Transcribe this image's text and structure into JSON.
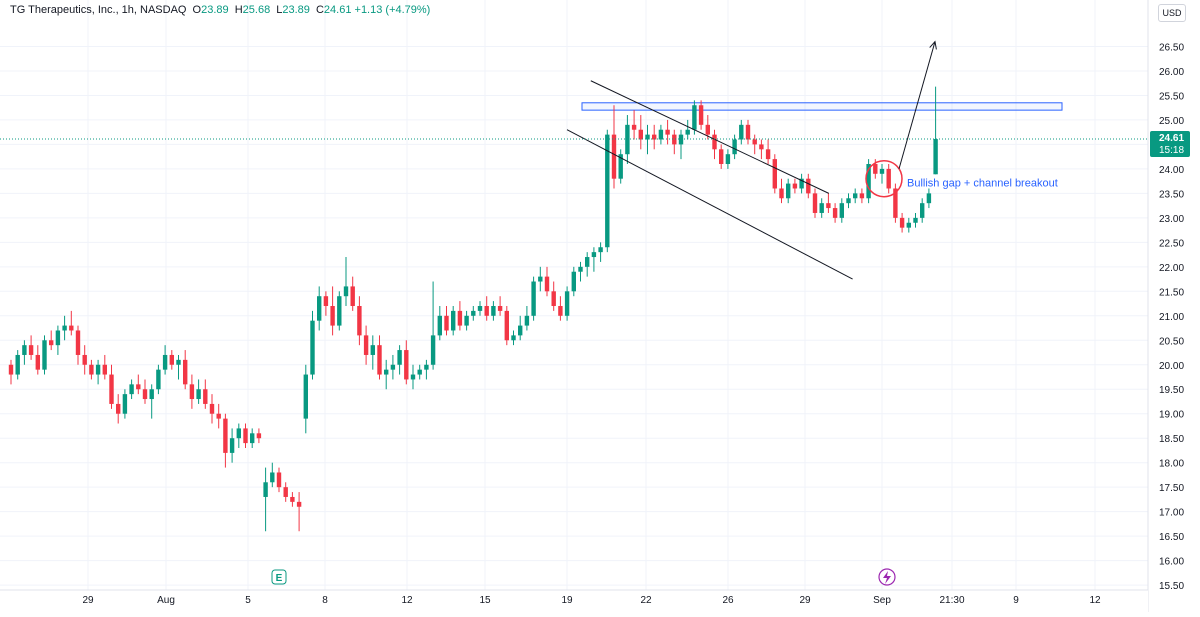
{
  "header": {
    "symbol": "TG Therapeutics, Inc., 1h, NASDAQ",
    "open_label": "O",
    "open": "23.89",
    "high_label": "H",
    "high": "25.68",
    "low_label": "L",
    "low": "23.89",
    "close_label": "C",
    "close": "24.61",
    "change": "+1.13 (+4.79%)"
  },
  "currency": "USD",
  "last_price": {
    "value": "24.61",
    "countdown": "15:18",
    "color": "#089981"
  },
  "annotation": {
    "text": "Bullish gap + channel breakout",
    "color": "#2962ff"
  },
  "markers": {
    "earnings": "E"
  },
  "colors": {
    "up": "#089981",
    "down": "#f23645",
    "line": "#131722",
    "zone": "#2962ff",
    "circle": "#f23645"
  },
  "chart_data": {
    "type": "candlestick",
    "ylim": [
      15.4,
      27.0
    ],
    "y_ticks": [
      "15.50",
      "16.00",
      "16.50",
      "17.00",
      "17.50",
      "18.00",
      "18.50",
      "19.00",
      "19.50",
      "20.00",
      "20.50",
      "21.00",
      "21.50",
      "22.00",
      "22.50",
      "23.00",
      "23.50",
      "24.00",
      "24.50",
      "25.00",
      "25.50",
      "26.00",
      "26.50"
    ],
    "x_labels": [
      "29",
      "Aug",
      "5",
      "8",
      "12",
      "15",
      "19",
      "22",
      "26",
      "29",
      "Sep",
      "21:30",
      "9",
      "12"
    ],
    "candles": [
      [
        20.0,
        20.1,
        19.6,
        19.8
      ],
      [
        19.8,
        20.3,
        19.7,
        20.2
      ],
      [
        20.2,
        20.5,
        20.0,
        20.4
      ],
      [
        20.4,
        20.6,
        20.1,
        20.2
      ],
      [
        20.2,
        20.4,
        19.8,
        19.9
      ],
      [
        19.9,
        20.6,
        19.8,
        20.5
      ],
      [
        20.5,
        20.7,
        20.3,
        20.4
      ],
      [
        20.4,
        20.8,
        20.2,
        20.7
      ],
      [
        20.7,
        21.0,
        20.5,
        20.8
      ],
      [
        20.8,
        21.1,
        20.6,
        20.7
      ],
      [
        20.7,
        20.8,
        20.0,
        20.2
      ],
      [
        20.2,
        20.4,
        19.8,
        20.0
      ],
      [
        20.0,
        20.1,
        19.7,
        19.8
      ],
      [
        19.8,
        20.1,
        19.6,
        20.0
      ],
      [
        20.0,
        20.2,
        19.7,
        19.8
      ],
      [
        19.8,
        20.0,
        19.1,
        19.2
      ],
      [
        19.2,
        19.4,
        18.8,
        19.0
      ],
      [
        19.0,
        19.5,
        18.9,
        19.4
      ],
      [
        19.4,
        19.7,
        19.3,
        19.6
      ],
      [
        19.6,
        19.8,
        19.4,
        19.5
      ],
      [
        19.5,
        19.7,
        19.2,
        19.3
      ],
      [
        19.3,
        19.6,
        18.9,
        19.5
      ],
      [
        19.5,
        20.0,
        19.4,
        19.9
      ],
      [
        19.9,
        20.4,
        19.8,
        20.2
      ],
      [
        20.2,
        20.3,
        19.9,
        20.0
      ],
      [
        20.0,
        20.2,
        19.7,
        20.1
      ],
      [
        20.1,
        20.3,
        19.5,
        19.6
      ],
      [
        19.6,
        19.8,
        19.1,
        19.3
      ],
      [
        19.3,
        19.7,
        19.2,
        19.5
      ],
      [
        19.5,
        19.7,
        19.1,
        19.2
      ],
      [
        19.2,
        19.4,
        18.8,
        19.0
      ],
      [
        19.0,
        19.2,
        18.7,
        18.9
      ],
      [
        18.9,
        19.0,
        17.9,
        18.2
      ],
      [
        18.2,
        18.7,
        18.0,
        18.5
      ],
      [
        18.5,
        18.8,
        18.3,
        18.7
      ],
      [
        18.7,
        18.8,
        18.3,
        18.4
      ],
      [
        18.4,
        18.7,
        18.3,
        18.6
      ],
      [
        18.6,
        18.7,
        18.4,
        18.5
      ],
      [
        17.3,
        17.9,
        16.6,
        17.6
      ],
      [
        17.6,
        18.0,
        17.5,
        17.8
      ],
      [
        17.8,
        17.9,
        17.4,
        17.5
      ],
      [
        17.5,
        17.6,
        17.2,
        17.3
      ],
      [
        17.3,
        17.4,
        17.1,
        17.2
      ],
      [
        17.2,
        17.4,
        16.6,
        17.1
      ],
      [
        18.9,
        20.0,
        18.6,
        19.8
      ],
      [
        19.8,
        21.1,
        19.7,
        20.9
      ],
      [
        20.9,
        21.6,
        20.7,
        21.4
      ],
      [
        21.4,
        21.5,
        21.0,
        21.2
      ],
      [
        21.2,
        21.6,
        20.6,
        20.8
      ],
      [
        20.8,
        21.5,
        20.7,
        21.4
      ],
      [
        21.4,
        22.2,
        21.2,
        21.6
      ],
      [
        21.6,
        21.8,
        21.1,
        21.2
      ],
      [
        21.2,
        21.4,
        20.4,
        20.6
      ],
      [
        20.6,
        20.8,
        20.0,
        20.2
      ],
      [
        20.2,
        20.6,
        19.9,
        20.4
      ],
      [
        20.4,
        20.6,
        19.7,
        19.8
      ],
      [
        19.8,
        20.1,
        19.5,
        19.9
      ],
      [
        19.9,
        20.2,
        19.7,
        20.0
      ],
      [
        20.0,
        20.4,
        19.8,
        20.3
      ],
      [
        20.3,
        20.5,
        19.6,
        19.7
      ],
      [
        19.7,
        20.0,
        19.5,
        19.8
      ],
      [
        19.8,
        20.0,
        19.7,
        19.9
      ],
      [
        19.9,
        20.1,
        19.7,
        20.0
      ],
      [
        20.0,
        21.7,
        19.9,
        20.6
      ],
      [
        20.6,
        21.2,
        20.5,
        21.0
      ],
      [
        21.0,
        21.2,
        20.6,
        20.7
      ],
      [
        20.7,
        21.2,
        20.6,
        21.1
      ],
      [
        21.1,
        21.3,
        20.7,
        20.8
      ],
      [
        20.8,
        21.1,
        20.7,
        21.0
      ],
      [
        21.0,
        21.2,
        20.9,
        21.1
      ],
      [
        21.1,
        21.3,
        21.0,
        21.2
      ],
      [
        21.2,
        21.4,
        20.9,
        21.0
      ],
      [
        21.0,
        21.3,
        20.9,
        21.2
      ],
      [
        21.2,
        21.4,
        21.0,
        21.1
      ],
      [
        21.1,
        21.2,
        20.4,
        20.5
      ],
      [
        20.5,
        20.7,
        20.4,
        20.6
      ],
      [
        20.6,
        21.0,
        20.5,
        20.8
      ],
      [
        20.8,
        21.2,
        20.7,
        21.0
      ],
      [
        21.0,
        21.8,
        20.9,
        21.7
      ],
      [
        21.7,
        22.0,
        21.5,
        21.8
      ],
      [
        21.8,
        22.0,
        21.4,
        21.5
      ],
      [
        21.5,
        21.7,
        21.1,
        21.2
      ],
      [
        21.2,
        21.4,
        20.9,
        21.0
      ],
      [
        21.0,
        21.6,
        20.9,
        21.5
      ],
      [
        21.5,
        22.0,
        21.4,
        21.9
      ],
      [
        21.9,
        22.1,
        21.7,
        22.0
      ],
      [
        22.0,
        22.3,
        21.8,
        22.2
      ],
      [
        22.2,
        22.4,
        21.9,
        22.3
      ],
      [
        22.3,
        22.5,
        22.1,
        22.4
      ],
      [
        22.4,
        24.8,
        22.3,
        24.7
      ],
      [
        24.7,
        25.3,
        23.6,
        23.8
      ],
      [
        23.8,
        24.4,
        23.7,
        24.3
      ],
      [
        24.3,
        25.1,
        24.1,
        24.9
      ],
      [
        24.9,
        25.2,
        24.6,
        24.8
      ],
      [
        24.8,
        25.1,
        24.4,
        24.6
      ],
      [
        24.6,
        24.9,
        24.3,
        24.7
      ],
      [
        24.7,
        24.9,
        24.4,
        24.6
      ],
      [
        24.6,
        24.9,
        24.5,
        24.8
      ],
      [
        24.8,
        25.0,
        24.5,
        24.7
      ],
      [
        24.7,
        24.8,
        24.3,
        24.5
      ],
      [
        24.5,
        24.8,
        24.2,
        24.7
      ],
      [
        24.7,
        25.0,
        24.6,
        24.8
      ],
      [
        24.8,
        25.4,
        24.7,
        25.3
      ],
      [
        25.3,
        25.4,
        24.8,
        24.9
      ],
      [
        24.9,
        25.1,
        24.6,
        24.7
      ],
      [
        24.7,
        24.8,
        24.2,
        24.4
      ],
      [
        24.4,
        24.5,
        24.0,
        24.1
      ],
      [
        24.1,
        24.4,
        24.0,
        24.3
      ],
      [
        24.3,
        24.7,
        24.2,
        24.6
      ],
      [
        24.6,
        25.0,
        24.5,
        24.9
      ],
      [
        24.9,
        25.0,
        24.5,
        24.6
      ],
      [
        24.6,
        24.7,
        24.3,
        24.5
      ],
      [
        24.5,
        24.6,
        24.2,
        24.4
      ],
      [
        24.4,
        24.6,
        24.1,
        24.2
      ],
      [
        24.2,
        24.3,
        23.5,
        23.6
      ],
      [
        23.6,
        23.8,
        23.3,
        23.4
      ],
      [
        23.4,
        23.8,
        23.3,
        23.7
      ],
      [
        23.7,
        23.8,
        23.5,
        23.6
      ],
      [
        23.6,
        23.9,
        23.5,
        23.8
      ],
      [
        23.8,
        23.9,
        23.4,
        23.5
      ],
      [
        23.5,
        23.6,
        23.0,
        23.1
      ],
      [
        23.1,
        23.4,
        23.0,
        23.3
      ],
      [
        23.3,
        23.5,
        23.1,
        23.2
      ],
      [
        23.2,
        23.3,
        22.9,
        23.0
      ],
      [
        23.0,
        23.4,
        22.9,
        23.3
      ],
      [
        23.3,
        23.5,
        23.2,
        23.4
      ],
      [
        23.4,
        23.6,
        23.3,
        23.5
      ],
      [
        23.5,
        23.6,
        23.3,
        23.4
      ],
      [
        23.4,
        24.2,
        23.3,
        24.1
      ],
      [
        24.1,
        24.2,
        23.8,
        23.9
      ],
      [
        23.9,
        24.1,
        23.7,
        24.0
      ],
      [
        24.0,
        24.1,
        23.5,
        23.6
      ],
      [
        23.6,
        23.7,
        22.9,
        23.0
      ],
      [
        23.0,
        23.1,
        22.7,
        22.8
      ],
      [
        22.8,
        23.0,
        22.7,
        22.9
      ],
      [
        22.9,
        23.1,
        22.8,
        23.0
      ],
      [
        23.0,
        23.4,
        22.9,
        23.3
      ],
      [
        23.3,
        23.6,
        23.2,
        23.5
      ],
      [
        23.89,
        25.68,
        23.89,
        24.61
      ]
    ],
    "levels": {
      "resistance_zone": [
        25.2,
        25.35
      ],
      "channel_upper": {
        "from": [
          20,
          25.8
        ],
        "to": [
          30,
          23.5
        ]
      },
      "channel_lower": {
        "from": [
          19,
          24.8
        ],
        "to": [
          31,
          21.75
        ]
      },
      "arrow": {
        "from": 24.0,
        "to": 26.6
      }
    }
  }
}
